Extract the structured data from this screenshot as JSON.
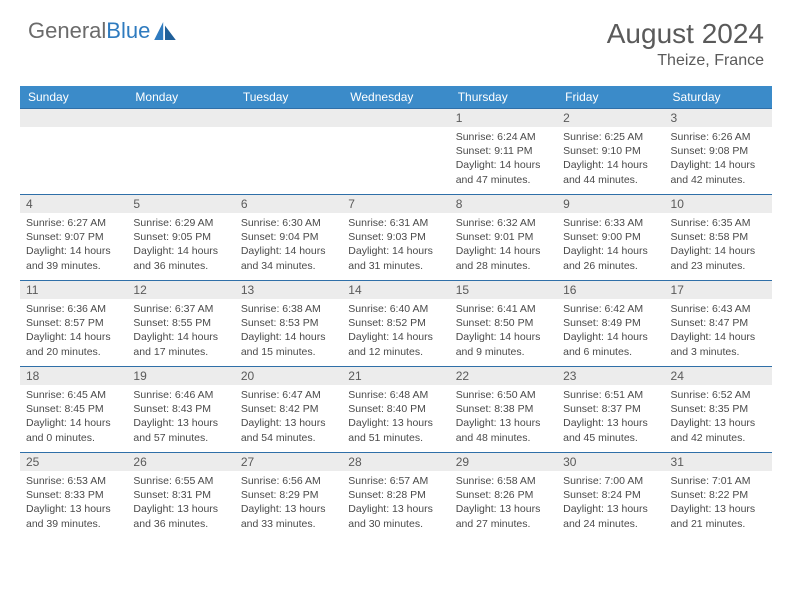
{
  "brand": {
    "part1": "General",
    "part2": "Blue"
  },
  "header": {
    "month": "August 2024",
    "location": "Theize, France"
  },
  "colors": {
    "header_bg": "#3b8bc9",
    "header_text": "#ffffff",
    "daynum_bg": "#ececec",
    "border": "#2f6fa8",
    "text": "#4a4a4a",
    "title": "#5a5a5a"
  },
  "day_labels": [
    "Sunday",
    "Monday",
    "Tuesday",
    "Wednesday",
    "Thursday",
    "Friday",
    "Saturday"
  ],
  "weeks": [
    [
      null,
      null,
      null,
      null,
      {
        "n": "1",
        "sunrise": "6:24 AM",
        "sunset": "9:11 PM",
        "dl": "14 hours and 47 minutes."
      },
      {
        "n": "2",
        "sunrise": "6:25 AM",
        "sunset": "9:10 PM",
        "dl": "14 hours and 44 minutes."
      },
      {
        "n": "3",
        "sunrise": "6:26 AM",
        "sunset": "9:08 PM",
        "dl": "14 hours and 42 minutes."
      }
    ],
    [
      {
        "n": "4",
        "sunrise": "6:27 AM",
        "sunset": "9:07 PM",
        "dl": "14 hours and 39 minutes."
      },
      {
        "n": "5",
        "sunrise": "6:29 AM",
        "sunset": "9:05 PM",
        "dl": "14 hours and 36 minutes."
      },
      {
        "n": "6",
        "sunrise": "6:30 AM",
        "sunset": "9:04 PM",
        "dl": "14 hours and 34 minutes."
      },
      {
        "n": "7",
        "sunrise": "6:31 AM",
        "sunset": "9:03 PM",
        "dl": "14 hours and 31 minutes."
      },
      {
        "n": "8",
        "sunrise": "6:32 AM",
        "sunset": "9:01 PM",
        "dl": "14 hours and 28 minutes."
      },
      {
        "n": "9",
        "sunrise": "6:33 AM",
        "sunset": "9:00 PM",
        "dl": "14 hours and 26 minutes."
      },
      {
        "n": "10",
        "sunrise": "6:35 AM",
        "sunset": "8:58 PM",
        "dl": "14 hours and 23 minutes."
      }
    ],
    [
      {
        "n": "11",
        "sunrise": "6:36 AM",
        "sunset": "8:57 PM",
        "dl": "14 hours and 20 minutes."
      },
      {
        "n": "12",
        "sunrise": "6:37 AM",
        "sunset": "8:55 PM",
        "dl": "14 hours and 17 minutes."
      },
      {
        "n": "13",
        "sunrise": "6:38 AM",
        "sunset": "8:53 PM",
        "dl": "14 hours and 15 minutes."
      },
      {
        "n": "14",
        "sunrise": "6:40 AM",
        "sunset": "8:52 PM",
        "dl": "14 hours and 12 minutes."
      },
      {
        "n": "15",
        "sunrise": "6:41 AM",
        "sunset": "8:50 PM",
        "dl": "14 hours and 9 minutes."
      },
      {
        "n": "16",
        "sunrise": "6:42 AM",
        "sunset": "8:49 PM",
        "dl": "14 hours and 6 minutes."
      },
      {
        "n": "17",
        "sunrise": "6:43 AM",
        "sunset": "8:47 PM",
        "dl": "14 hours and 3 minutes."
      }
    ],
    [
      {
        "n": "18",
        "sunrise": "6:45 AM",
        "sunset": "8:45 PM",
        "dl": "14 hours and 0 minutes."
      },
      {
        "n": "19",
        "sunrise": "6:46 AM",
        "sunset": "8:43 PM",
        "dl": "13 hours and 57 minutes."
      },
      {
        "n": "20",
        "sunrise": "6:47 AM",
        "sunset": "8:42 PM",
        "dl": "13 hours and 54 minutes."
      },
      {
        "n": "21",
        "sunrise": "6:48 AM",
        "sunset": "8:40 PM",
        "dl": "13 hours and 51 minutes."
      },
      {
        "n": "22",
        "sunrise": "6:50 AM",
        "sunset": "8:38 PM",
        "dl": "13 hours and 48 minutes."
      },
      {
        "n": "23",
        "sunrise": "6:51 AM",
        "sunset": "8:37 PM",
        "dl": "13 hours and 45 minutes."
      },
      {
        "n": "24",
        "sunrise": "6:52 AM",
        "sunset": "8:35 PM",
        "dl": "13 hours and 42 minutes."
      }
    ],
    [
      {
        "n": "25",
        "sunrise": "6:53 AM",
        "sunset": "8:33 PM",
        "dl": "13 hours and 39 minutes."
      },
      {
        "n": "26",
        "sunrise": "6:55 AM",
        "sunset": "8:31 PM",
        "dl": "13 hours and 36 minutes."
      },
      {
        "n": "27",
        "sunrise": "6:56 AM",
        "sunset": "8:29 PM",
        "dl": "13 hours and 33 minutes."
      },
      {
        "n": "28",
        "sunrise": "6:57 AM",
        "sunset": "8:28 PM",
        "dl": "13 hours and 30 minutes."
      },
      {
        "n": "29",
        "sunrise": "6:58 AM",
        "sunset": "8:26 PM",
        "dl": "13 hours and 27 minutes."
      },
      {
        "n": "30",
        "sunrise": "7:00 AM",
        "sunset": "8:24 PM",
        "dl": "13 hours and 24 minutes."
      },
      {
        "n": "31",
        "sunrise": "7:01 AM",
        "sunset": "8:22 PM",
        "dl": "13 hours and 21 minutes."
      }
    ]
  ]
}
